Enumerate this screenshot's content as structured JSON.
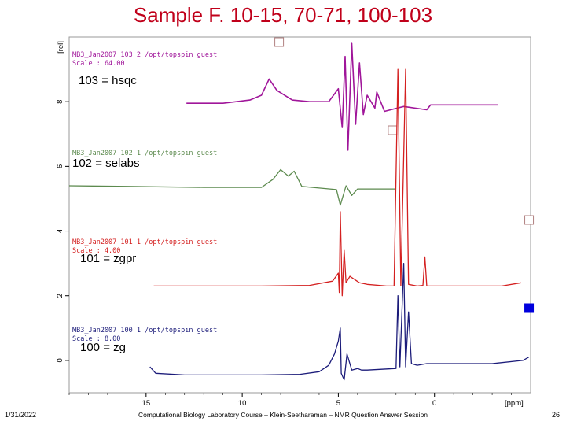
{
  "title": "Sample F. 10-15, 70-71, 100-103",
  "footer": {
    "date": "1/31/2022",
    "credit": "Computational Biology Laboratory Course – Klein-Seetharaman – NMR Question Answer Session",
    "page": "26"
  },
  "chart_data": {
    "type": "line",
    "xlabel": "[ppm]",
    "ylabel": "[rel]",
    "x_ticks": [
      15,
      10,
      5,
      0
    ],
    "y_ticks": [
      0,
      2,
      4,
      6,
      8
    ],
    "xlim": [
      19,
      -5
    ],
    "ylim": [
      -1,
      10
    ],
    "series": [
      {
        "name": "103 = hsqc",
        "color": "#a0169a",
        "header_line1": "MB3_Jan2007   103  2  /opt/topspin  guest",
        "header_line2": "Scale : 64.00",
        "points": [
          [
            12.9,
            7.95
          ],
          [
            11,
            7.95
          ],
          [
            9.6,
            8.05
          ],
          [
            9,
            8.2
          ],
          [
            8.6,
            8.7
          ],
          [
            8.2,
            8.35
          ],
          [
            7.4,
            8.05
          ],
          [
            6.5,
            8.0
          ],
          [
            5.5,
            8.0
          ],
          [
            5.0,
            8.4
          ],
          [
            4.8,
            7.2
          ],
          [
            4.65,
            9.4
          ],
          [
            4.5,
            6.5
          ],
          [
            4.3,
            9.8
          ],
          [
            4.1,
            7.3
          ],
          [
            3.9,
            9.2
          ],
          [
            3.7,
            7.6
          ],
          [
            3.5,
            8.2
          ],
          [
            3.1,
            7.8
          ],
          [
            3.0,
            8.3
          ],
          [
            2.6,
            7.7
          ],
          [
            1.6,
            7.85
          ],
          [
            0.4,
            7.75
          ],
          [
            0.2,
            7.9
          ],
          [
            -3.3,
            7.9
          ]
        ],
        "ghost_box_ppm": 8.1
      },
      {
        "name": "102 = selabs",
        "color": "#5c8a4e",
        "header_line1": "MB3_Jan2007   102  1  /opt/topspin  guest",
        "header_line2": "",
        "points": [
          [
            19,
            5.4
          ],
          [
            16,
            5.38
          ],
          [
            12,
            5.35
          ],
          [
            9,
            5.35
          ],
          [
            8.4,
            5.6
          ],
          [
            8.0,
            5.9
          ],
          [
            7.6,
            5.7
          ],
          [
            7.3,
            5.85
          ],
          [
            6.9,
            5.38
          ],
          [
            6,
            5.33
          ],
          [
            5.1,
            5.28
          ],
          [
            4.9,
            4.8
          ],
          [
            4.6,
            5.4
          ],
          [
            4.3,
            5.1
          ],
          [
            4,
            5.3
          ],
          [
            3,
            5.3
          ],
          [
            2,
            5.3
          ]
        ],
        "ghost_box_ppm": 2.2
      },
      {
        "name": "101 = zgpr",
        "color": "#d42020",
        "header_line1": "MB3_Jan2007   101  1  /opt/topspin  guest",
        "header_line2": "Scale : 4.00",
        "points": [
          [
            14.6,
            2.3
          ],
          [
            12,
            2.3
          ],
          [
            9,
            2.3
          ],
          [
            6.5,
            2.32
          ],
          [
            5.3,
            2.45
          ],
          [
            5.0,
            2.7
          ],
          [
            4.95,
            2.1
          ],
          [
            4.9,
            4.6
          ],
          [
            4.8,
            2.0
          ],
          [
            4.7,
            3.4
          ],
          [
            4.6,
            2.4
          ],
          [
            4.4,
            2.6
          ],
          [
            3.9,
            2.4
          ],
          [
            3.5,
            2.35
          ],
          [
            2.5,
            2.3
          ],
          [
            2.1,
            2.3
          ],
          [
            1.9,
            9.0
          ],
          [
            1.75,
            2.3
          ],
          [
            1.5,
            9.0
          ],
          [
            1.35,
            2.35
          ],
          [
            0.9,
            2.3
          ],
          [
            0.6,
            2.32
          ],
          [
            0.5,
            3.2
          ],
          [
            0.4,
            2.3
          ],
          [
            -3.5,
            2.3
          ],
          [
            -4.5,
            2.4
          ]
        ],
        "ghost_box_ppm": -4.9
      },
      {
        "name": "100 = zg",
        "color": "#1c1c7a",
        "header_line1": "MB3_Jan2007   100  1  /opt/topspin  guest",
        "header_line2": "Scale : 8.00",
        "points": [
          [
            14.8,
            -0.2
          ],
          [
            14.5,
            -0.4
          ],
          [
            13,
            -0.45
          ],
          [
            9,
            -0.45
          ],
          [
            7,
            -0.43
          ],
          [
            6,
            -0.35
          ],
          [
            5.5,
            -0.15
          ],
          [
            5.2,
            0.2
          ],
          [
            5.0,
            0.6
          ],
          [
            4.9,
            1.0
          ],
          [
            4.85,
            -0.4
          ],
          [
            4.7,
            -0.6
          ],
          [
            4.55,
            0.2
          ],
          [
            4.3,
            -0.3
          ],
          [
            4.0,
            -0.25
          ],
          [
            3.8,
            -0.3
          ],
          [
            3.5,
            -0.3
          ],
          [
            2.0,
            -0.25
          ],
          [
            1.9,
            2.0
          ],
          [
            1.8,
            -0.2
          ],
          [
            1.6,
            3.0
          ],
          [
            1.5,
            -0.2
          ],
          [
            1.35,
            1.5
          ],
          [
            1.2,
            -0.1
          ],
          [
            0.9,
            -0.15
          ],
          [
            0.4,
            -0.1
          ],
          [
            -3,
            -0.1
          ],
          [
            -4.6,
            0.0
          ],
          [
            -4.9,
            0.1
          ]
        ],
        "ghost_box_ppm": -4.9
      }
    ]
  }
}
